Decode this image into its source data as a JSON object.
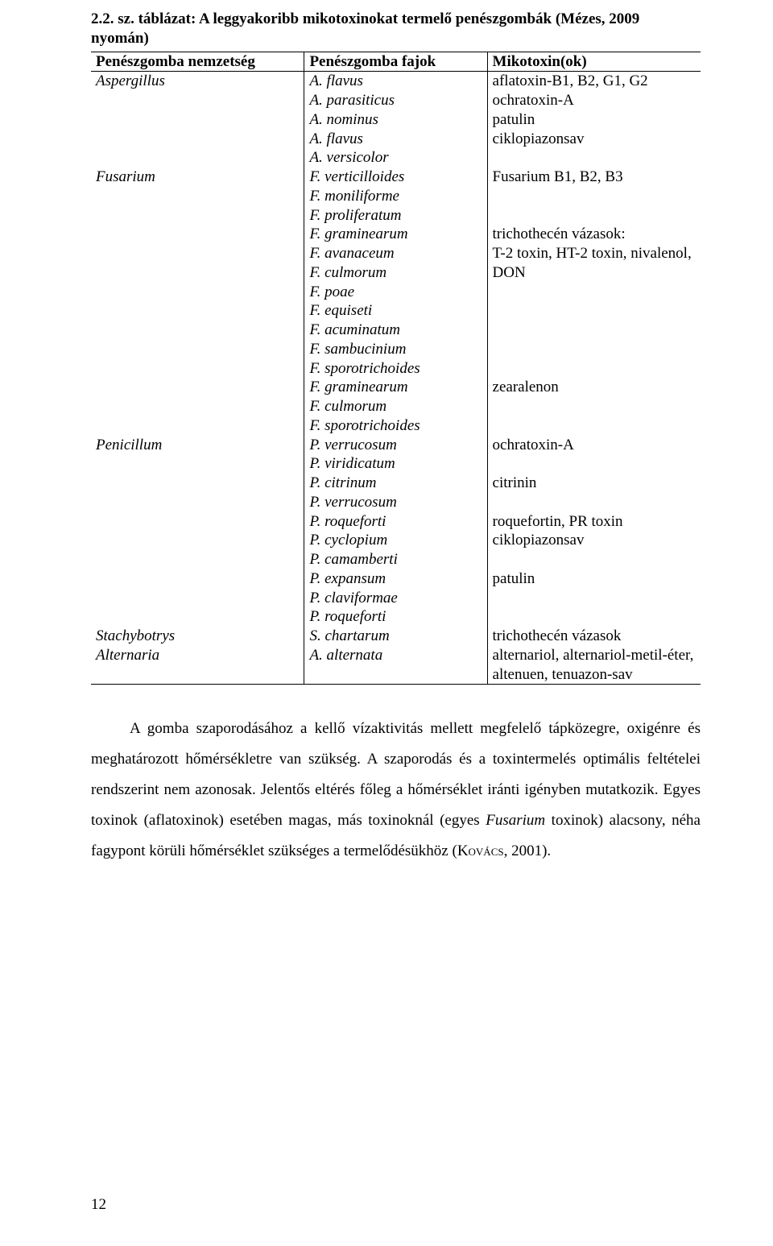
{
  "table": {
    "caption": "2.2. sz. táblázat: A leggyakoribb mikotoxinokat termelő penészgombák (Mézes, 2009 nyomán)",
    "headers": [
      "Penészgomba nemzetség",
      "Penészgomba fajok",
      "Mikotoxin(ok)"
    ],
    "rows": [
      {
        "genus": "Aspergillus",
        "species": "A. flavus",
        "tox": "aflatoxin-B1, B2, G1, G2"
      },
      {
        "genus": "",
        "species": "A. parasiticus",
        "tox": "ochratoxin-A"
      },
      {
        "genus": "",
        "species": "A. nominus",
        "tox": "patulin"
      },
      {
        "genus": "",
        "species": "A. flavus",
        "tox": "ciklopiazonsav"
      },
      {
        "genus": "",
        "species": "A. versicolor",
        "tox": ""
      },
      {
        "genus": "Fusarium",
        "species": "F. verticilloides",
        "tox": "Fusarium B1, B2, B3"
      },
      {
        "genus": "",
        "species": "F. moniliforme",
        "tox": ""
      },
      {
        "genus": "",
        "species": "F. proliferatum",
        "tox": ""
      },
      {
        "genus": "",
        "species": "F. graminearum",
        "tox": "trichothecén vázasok:"
      },
      {
        "genus": "",
        "species": "F. avanaceum",
        "tox": "T-2 toxin, HT-2 toxin, nivalenol,"
      },
      {
        "genus": "",
        "species": "F. culmorum",
        "tox": "DON"
      },
      {
        "genus": "",
        "species": "F. poae",
        "tox": ""
      },
      {
        "genus": "",
        "species": "F. equiseti",
        "tox": ""
      },
      {
        "genus": "",
        "species": "F. acuminatum",
        "tox": ""
      },
      {
        "genus": "",
        "species": "F. sambucinium",
        "tox": ""
      },
      {
        "genus": "",
        "species": "F. sporotrichoides",
        "tox": ""
      },
      {
        "genus": "",
        "species": "F. graminearum",
        "tox": "zearalenon"
      },
      {
        "genus": "",
        "species": "F. culmorum",
        "tox": ""
      },
      {
        "genus": "",
        "species": "F. sporotrichoides",
        "tox": ""
      },
      {
        "genus": "Penicillum",
        "species": "P. verrucosum",
        "tox": "ochratoxin-A"
      },
      {
        "genus": "",
        "species": "P. viridicatum",
        "tox": ""
      },
      {
        "genus": "",
        "species": "P. citrinum",
        "tox": "citrinin"
      },
      {
        "genus": "",
        "species": "P. verrucosum",
        "tox": ""
      },
      {
        "genus": "",
        "species": "P. roqueforti",
        "tox": "roquefortin, PR toxin"
      },
      {
        "genus": "",
        "species": "P. cyclopium",
        "tox": "ciklopiazonsav"
      },
      {
        "genus": "",
        "species": "P. camamberti",
        "tox": ""
      },
      {
        "genus": "",
        "species": "P. expansum",
        "tox": "patulin"
      },
      {
        "genus": "",
        "species": "P. claviformae",
        "tox": ""
      },
      {
        "genus": "",
        "species": "P. roqueforti",
        "tox": ""
      },
      {
        "genus": "Stachybotrys",
        "species": "S. chartarum",
        "tox": "trichothecén vázasok"
      },
      {
        "genus": "Alternaria",
        "species": "A. alternata",
        "tox": "alternariol, alternariol-metil-éter,"
      },
      {
        "genus": "",
        "species": "",
        "tox": "altenuen, tenuazon-sav"
      }
    ]
  },
  "paragraph": {
    "pre": "A gomba szaporodásához a kellő vízaktivitás mellett megfelelő tápközegre, oxigénre és meghatározott hőmérsékletre van szükség. A szaporodás és a toxintermelés optimális feltételei rendszerint nem azonosak. Jelentős eltérés főleg a hőmérséklet iránti igényben mutatkozik. Egyes toxinok (aflatoxinok) esetében magas, más toxinoknál (egyes ",
    "italic1": "Fusarium",
    "mid": " toxinok) alacsony, néha fagypont körüli hőmérséklet szükséges a termelődésükhöz (",
    "smallcaps": "Kovács",
    "post": ", 2001)."
  },
  "page_number": "12"
}
